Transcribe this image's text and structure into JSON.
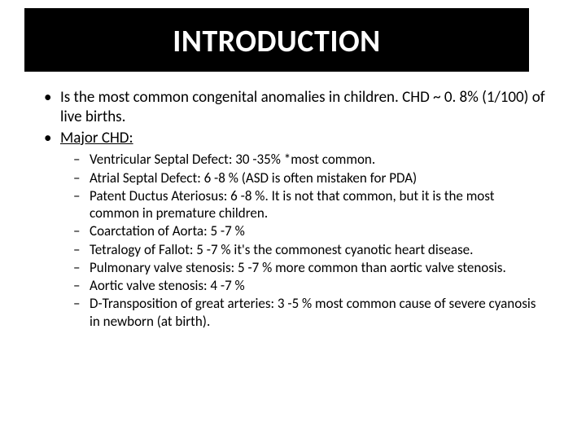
{
  "title": "INTRODUCTION",
  "bullets": [
    {
      "text": "Is the most common congenital anomalies in children. CHD ~ 0. 8% (1/100) of live births."
    },
    {
      "text": "Major CHD:",
      "underline": true
    }
  ],
  "sub_bullets": [
    "Ventricular Septal Defect: 30 -35% *most common.",
    "Atrial Septal Defect: 6 -8 % (ASD is often mistaken for PDA)",
    "Patent Ductus Ateriosus: 6 -8 %. It is not that common, but it is the most common in premature children.",
    "Coarctation of Aorta: 5 -7 %",
    "Tetralogy of Fallot: 5 -7 % it's the commonest cyanotic heart disease.",
    "Pulmonary valve stenosis: 5 -7 % more common than aortic valve stenosis.",
    "Aortic valve stenosis: 4 -7 %",
    "D-Transposition of great arteries: 3 -5 % most common cause of severe cyanosis in newborn (at birth)."
  ],
  "colors": {
    "title_bg": "#000000",
    "title_fg": "#ffffff",
    "body_bg": "#ffffff",
    "body_fg": "#000000"
  },
  "typography": {
    "title_fontsize": 38,
    "bullet_fontsize": 19,
    "sub_bullet_fontsize": 17,
    "font_family": "Calibri"
  }
}
